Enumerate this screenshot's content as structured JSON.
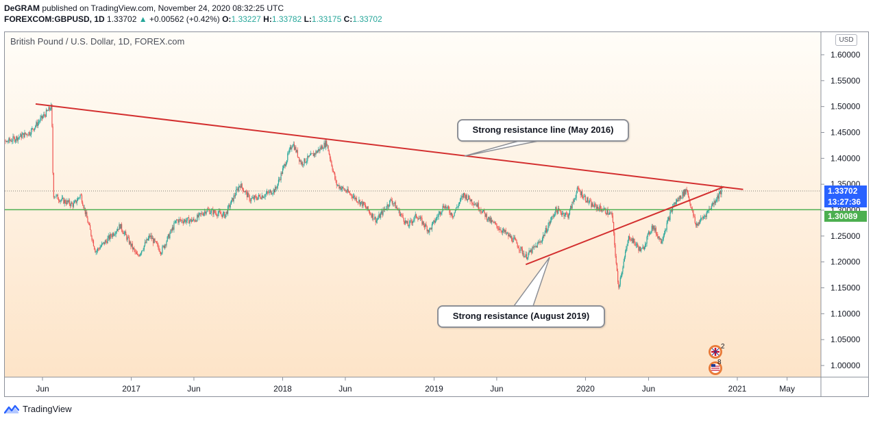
{
  "header": {
    "line1_user": "DeGRAM",
    "line1_text": "published on TradingView.com, November 24, 2020 08:32:25 UTC",
    "symbol": "FOREXCOM:GBPUSD, 1D",
    "last": "1.33702",
    "change": "+0.00562 (+0.42%)",
    "o_label": "O:",
    "o_value": "1.33227",
    "h_label": "H:",
    "h_value": "1.33782",
    "l_label": "L:",
    "l_value": "1.33175",
    "c_label": "C:",
    "c_value": "1.33702"
  },
  "chart_title": "British Pound / U.S. Dollar, 1D, FOREX.com",
  "currency_label": "USD",
  "price_tags": {
    "last_price": "1.33702",
    "countdown": "13:27:36",
    "support_price": "1.30089"
  },
  "callouts": {
    "top": "Strong resistance line (May 2016)",
    "bottom": "Strong resistance (August 2019)"
  },
  "events": {
    "uk_count": "2",
    "us_count": "8"
  },
  "footer_brand": "TradingView",
  "colors": {
    "bull": "#26a69a",
    "bear": "#ef5350",
    "trendline": "#d32f2f",
    "support": "#4caf50",
    "last_price_tag": "#2962ff",
    "support_tag": "#4caf50"
  },
  "chart_data": {
    "type": "candlestick",
    "title": "British Pound / U.S. Dollar, 1D, FOREX.com",
    "ylabel": "USD",
    "ylim": [
      0.975,
      1.63
    ],
    "y_ticks": [
      "1.60000",
      "1.55000",
      "1.50000",
      "1.45000",
      "1.40000",
      "1.35000",
      "1.30000",
      "1.25000",
      "1.20000",
      "1.15000",
      "1.10000",
      "1.05000",
      "1.00000"
    ],
    "x_ticks": [
      {
        "label": "Jun",
        "date": "2016-06-01"
      },
      {
        "label": "2017",
        "date": "2017-01-01"
      },
      {
        "label": "Jun",
        "date": "2017-06-01"
      },
      {
        "label": "2018",
        "date": "2018-01-01"
      },
      {
        "label": "Jun",
        "date": "2018-06-01"
      },
      {
        "label": "2019",
        "date": "2019-01-01"
      },
      {
        "label": "Jun",
        "date": "2019-06-01"
      },
      {
        "label": "2020",
        "date": "2020-01-01"
      },
      {
        "label": "Jun",
        "date": "2020-06-01"
      },
      {
        "label": "2021",
        "date": "2021-01-01"
      },
      {
        "label": "May",
        "date": "2021-05-01"
      }
    ],
    "x_range": [
      "2016-02-01",
      "2021-07-01"
    ],
    "price_path": [
      [
        "2016-02-01",
        1.39
      ],
      [
        "2016-03-01",
        1.43
      ],
      [
        "2016-04-01",
        1.44
      ],
      [
        "2016-05-01",
        1.45
      ],
      [
        "2016-06-23",
        1.5
      ],
      [
        "2016-06-27",
        1.33
      ],
      [
        "2016-07-15",
        1.32
      ],
      [
        "2016-08-15",
        1.31
      ],
      [
        "2016-09-01",
        1.33
      ],
      [
        "2016-10-07",
        1.22
      ],
      [
        "2016-11-01",
        1.24
      ],
      [
        "2016-12-05",
        1.27
      ],
      [
        "2017-01-16",
        1.21
      ],
      [
        "2017-02-15",
        1.25
      ],
      [
        "2017-03-14",
        1.22
      ],
      [
        "2017-04-20",
        1.28
      ],
      [
        "2017-06-01",
        1.28
      ],
      [
        "2017-07-01",
        1.3
      ],
      [
        "2017-08-15",
        1.29
      ],
      [
        "2017-09-20",
        1.35
      ],
      [
        "2017-10-15",
        1.32
      ],
      [
        "2017-11-20",
        1.33
      ],
      [
        "2017-12-15",
        1.34
      ],
      [
        "2018-01-25",
        1.43
      ],
      [
        "2018-02-15",
        1.39
      ],
      [
        "2018-03-20",
        1.41
      ],
      [
        "2018-04-17",
        1.43
      ],
      [
        "2018-05-10",
        1.35
      ],
      [
        "2018-06-15",
        1.33
      ],
      [
        "2018-07-15",
        1.31
      ],
      [
        "2018-08-15",
        1.28
      ],
      [
        "2018-09-20",
        1.32
      ],
      [
        "2018-10-30",
        1.27
      ],
      [
        "2018-11-20",
        1.29
      ],
      [
        "2018-12-20",
        1.26
      ],
      [
        "2019-01-25",
        1.31
      ],
      [
        "2019-02-15",
        1.29
      ],
      [
        "2019-03-13",
        1.33
      ],
      [
        "2019-04-15",
        1.31
      ],
      [
        "2019-05-15",
        1.28
      ],
      [
        "2019-06-15",
        1.26
      ],
      [
        "2019-07-15",
        1.24
      ],
      [
        "2019-08-10",
        1.21
      ],
      [
        "2019-09-15",
        1.24
      ],
      [
        "2019-10-21",
        1.3
      ],
      [
        "2019-11-20",
        1.29
      ],
      [
        "2019-12-13",
        1.34
      ],
      [
        "2020-01-15",
        1.31
      ],
      [
        "2020-02-15",
        1.3
      ],
      [
        "2020-03-05",
        1.29
      ],
      [
        "2020-03-20",
        1.15
      ],
      [
        "2020-04-15",
        1.25
      ],
      [
        "2020-05-15",
        1.22
      ],
      [
        "2020-06-10",
        1.27
      ],
      [
        "2020-07-01",
        1.24
      ],
      [
        "2020-07-31",
        1.31
      ],
      [
        "2020-09-01",
        1.34
      ],
      [
        "2020-09-23",
        1.27
      ],
      [
        "2020-10-15",
        1.29
      ],
      [
        "2020-11-24",
        1.337
      ]
    ],
    "annotations": {
      "resistance_line_2016": {
        "from": [
          "2016-06-01",
          1.505
        ],
        "to": [
          "2021-01-15",
          1.34
        ]
      },
      "resistance_line_2019": {
        "from": [
          "2019-08-10",
          1.195
        ],
        "to": [
          "2020-11-30",
          1.345
        ]
      },
      "support_level": 1.30089,
      "last_price": 1.33702
    },
    "legend": "none",
    "grid": false
  }
}
